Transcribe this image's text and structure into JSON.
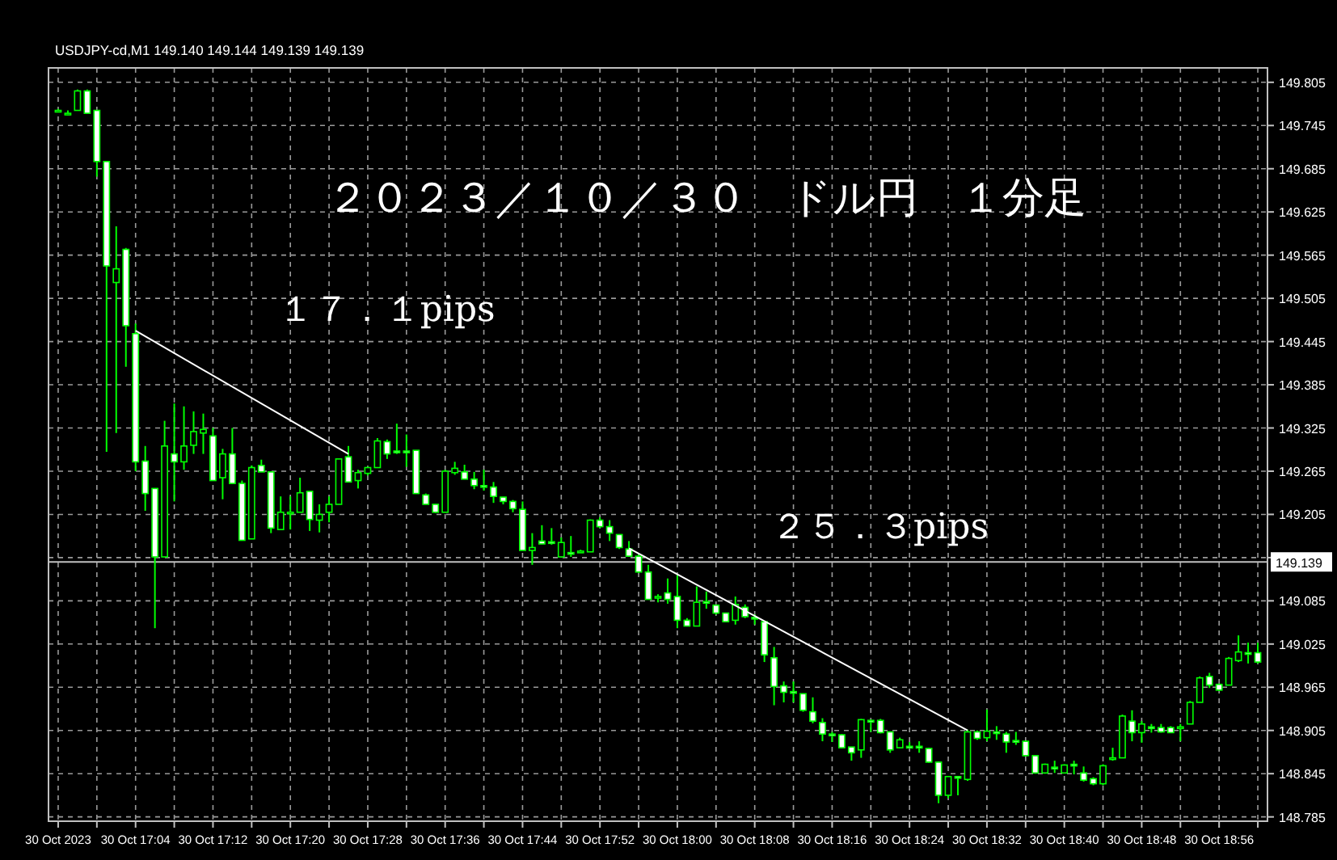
{
  "chart_data": {
    "type": "candlestick",
    "title": "２０２３／１０／３０　ドル円　１分足",
    "subtitle": "USDJPY-cd,M1  149.140 149.144 149.139 149.139",
    "x": [
      "2023-10-30T16:56",
      "2023-10-30T16:57",
      "2023-10-30T16:58",
      "2023-10-30T16:59",
      "2023-10-30T17:00",
      "2023-10-30T17:01",
      "2023-10-30T17:02",
      "2023-10-30T17:03",
      "2023-10-30T17:04",
      "2023-10-30T17:05",
      "2023-10-30T17:06",
      "2023-10-30T17:07",
      "2023-10-30T17:08",
      "2023-10-30T17:09",
      "2023-10-30T17:10",
      "2023-10-30T17:11",
      "2023-10-30T17:12",
      "2023-10-30T17:13",
      "2023-10-30T17:14",
      "2023-10-30T17:15",
      "2023-10-30T17:16",
      "2023-10-30T17:17",
      "2023-10-30T17:18",
      "2023-10-30T17:19",
      "2023-10-30T17:20",
      "2023-10-30T17:21",
      "2023-10-30T17:22",
      "2023-10-30T17:23",
      "2023-10-30T17:24",
      "2023-10-30T17:25",
      "2023-10-30T17:26",
      "2023-10-30T17:27",
      "2023-10-30T17:28",
      "2023-10-30T17:29",
      "2023-10-30T17:30",
      "2023-10-30T17:31",
      "2023-10-30T17:32",
      "2023-10-30T17:33",
      "2023-10-30T17:34",
      "2023-10-30T17:35",
      "2023-10-30T17:36",
      "2023-10-30T17:37",
      "2023-10-30T17:38",
      "2023-10-30T17:39",
      "2023-10-30T17:40",
      "2023-10-30T17:41",
      "2023-10-30T17:42",
      "2023-10-30T17:43",
      "2023-10-30T17:44",
      "2023-10-30T17:45",
      "2023-10-30T17:46",
      "2023-10-30T17:47",
      "2023-10-30T17:48",
      "2023-10-30T17:49",
      "2023-10-30T17:50",
      "2023-10-30T17:51",
      "2023-10-30T17:52",
      "2023-10-30T17:53",
      "2023-10-30T17:54",
      "2023-10-30T17:55",
      "2023-10-30T17:56",
      "2023-10-30T17:57",
      "2023-10-30T17:58",
      "2023-10-30T17:59",
      "2023-10-30T18:00",
      "2023-10-30T18:01",
      "2023-10-30T18:02",
      "2023-10-30T18:03",
      "2023-10-30T18:04",
      "2023-10-30T18:05",
      "2023-10-30T18:06",
      "2023-10-30T18:07",
      "2023-10-30T18:08",
      "2023-10-30T18:09",
      "2023-10-30T18:10",
      "2023-10-30T18:11",
      "2023-10-30T18:12",
      "2023-10-30T18:13",
      "2023-10-30T18:14",
      "2023-10-30T18:15",
      "2023-10-30T18:16",
      "2023-10-30T18:17",
      "2023-10-30T18:18",
      "2023-10-30T18:19",
      "2023-10-30T18:20",
      "2023-10-30T18:21",
      "2023-10-30T18:22",
      "2023-10-30T18:23",
      "2023-10-30T18:24",
      "2023-10-30T18:25",
      "2023-10-30T18:26",
      "2023-10-30T18:27",
      "2023-10-30T18:28",
      "2023-10-30T18:29",
      "2023-10-30T18:30",
      "2023-10-30T18:31",
      "2023-10-30T18:32",
      "2023-10-30T18:33",
      "2023-10-30T18:34",
      "2023-10-30T18:35",
      "2023-10-30T18:36",
      "2023-10-30T18:37",
      "2023-10-30T18:38",
      "2023-10-30T18:39",
      "2023-10-30T18:40",
      "2023-10-30T18:41",
      "2023-10-30T18:42",
      "2023-10-30T18:43",
      "2023-10-30T18:44",
      "2023-10-30T18:45",
      "2023-10-30T18:46",
      "2023-10-30T18:47",
      "2023-10-30T18:48",
      "2023-10-30T18:49",
      "2023-10-30T18:50",
      "2023-10-30T18:51",
      "2023-10-30T18:52",
      "2023-10-30T18:53",
      "2023-10-30T18:54",
      "2023-10-30T18:55",
      "2023-10-30T18:56",
      "2023-10-30T18:57",
      "2023-10-30T18:58",
      "2023-10-30T18:59",
      "2023-10-30T19:00"
    ],
    "ohlc": [
      [
        149.766,
        149.768,
        149.764,
        149.766
      ],
      [
        149.762,
        149.766,
        149.759,
        149.762
      ],
      [
        149.766,
        149.795,
        149.766,
        149.793
      ],
      [
        149.793,
        149.795,
        149.762,
        149.762
      ],
      [
        149.766,
        149.766,
        149.674,
        149.695
      ],
      [
        149.695,
        149.695,
        149.292,
        149.55
      ],
      [
        149.527,
        149.605,
        149.318,
        149.546
      ],
      [
        149.573,
        149.575,
        149.41,
        149.467
      ],
      [
        149.456,
        149.47,
        149.265,
        149.278
      ],
      [
        149.279,
        149.3,
        149.21,
        149.234
      ],
      [
        149.241,
        149.241,
        149.047,
        149.146
      ],
      [
        149.146,
        149.335,
        149.146,
        149.3
      ],
      [
        149.289,
        149.359,
        149.223,
        149.278
      ],
      [
        149.278,
        149.355,
        149.267,
        149.3
      ],
      [
        149.301,
        149.348,
        149.289,
        149.32
      ],
      [
        149.318,
        149.345,
        149.289,
        149.323
      ],
      [
        149.314,
        149.325,
        149.252,
        149.252
      ],
      [
        149.256,
        149.296,
        149.226,
        149.289
      ],
      [
        149.289,
        149.325,
        149.248,
        149.248
      ],
      [
        149.248,
        149.252,
        149.169,
        149.169
      ],
      [
        149.171,
        149.273,
        149.171,
        149.27
      ],
      [
        149.273,
        149.281,
        149.264,
        149.264
      ],
      [
        149.264,
        149.264,
        149.179,
        149.186
      ],
      [
        149.184,
        149.23,
        149.184,
        149.208
      ],
      [
        149.208,
        149.23,
        149.184,
        149.208
      ],
      [
        149.208,
        149.256,
        149.208,
        149.235
      ],
      [
        149.237,
        149.237,
        149.182,
        149.198
      ],
      [
        149.197,
        149.219,
        149.18,
        149.205
      ],
      [
        149.208,
        149.23,
        149.194,
        149.219
      ],
      [
        149.219,
        149.282,
        149.219,
        149.282
      ],
      [
        149.285,
        149.3,
        149.25,
        149.25
      ],
      [
        149.252,
        149.267,
        149.241,
        149.263
      ],
      [
        149.262,
        149.271,
        149.259,
        149.27
      ],
      [
        149.27,
        149.311,
        149.27,
        149.307
      ],
      [
        149.306,
        149.309,
        149.282,
        149.289
      ],
      [
        149.293,
        149.331,
        149.289,
        149.292
      ],
      [
        149.293,
        149.316,
        149.271,
        149.291
      ],
      [
        149.294,
        149.294,
        149.234,
        149.234
      ],
      [
        149.232,
        149.234,
        149.219,
        149.219
      ],
      [
        149.219,
        149.219,
        149.207,
        149.208
      ],
      [
        149.208,
        149.267,
        149.208,
        149.265
      ],
      [
        149.263,
        149.278,
        149.26,
        149.269
      ],
      [
        149.264,
        149.274,
        149.254,
        149.254
      ],
      [
        149.254,
        149.264,
        149.24,
        149.245
      ],
      [
        149.245,
        149.267,
        149.238,
        149.244
      ],
      [
        149.243,
        149.25,
        149.221,
        149.23
      ],
      [
        149.229,
        149.229,
        149.219,
        149.223
      ],
      [
        149.223,
        149.225,
        149.208,
        149.213
      ],
      [
        149.212,
        149.223,
        149.155,
        149.155
      ],
      [
        149.155,
        149.179,
        149.135,
        149.159
      ],
      [
        149.168,
        149.19,
        149.164,
        149.164
      ],
      [
        149.167,
        149.186,
        149.163,
        149.166
      ],
      [
        149.146,
        149.173,
        149.146,
        149.166
      ],
      [
        149.152,
        149.175,
        149.146,
        149.151
      ],
      [
        149.154,
        149.156,
        149.152,
        149.154
      ],
      [
        149.153,
        149.198,
        149.153,
        149.197
      ],
      [
        149.197,
        149.201,
        149.186,
        149.188
      ],
      [
        149.188,
        149.197,
        149.168,
        149.179
      ],
      [
        149.177,
        149.177,
        149.157,
        149.159
      ],
      [
        149.157,
        149.168,
        149.146,
        149.147
      ],
      [
        149.147,
        149.149,
        149.124,
        149.125
      ],
      [
        149.125,
        149.135,
        149.087,
        149.087
      ],
      [
        149.09,
        149.094,
        149.083,
        149.091
      ],
      [
        149.096,
        149.116,
        149.081,
        149.087
      ],
      [
        149.091,
        149.121,
        149.047,
        149.058
      ],
      [
        149.058,
        149.061,
        149.05,
        149.05
      ],
      [
        149.05,
        149.105,
        149.05,
        149.083
      ],
      [
        149.084,
        149.098,
        149.074,
        149.083
      ],
      [
        149.079,
        149.079,
        149.066,
        149.068
      ],
      [
        149.068,
        149.068,
        149.056,
        149.056
      ],
      [
        149.058,
        149.091,
        149.052,
        149.08
      ],
      [
        149.076,
        149.08,
        149.061,
        149.063
      ],
      [
        149.062,
        149.066,
        149.052,
        149.061
      ],
      [
        149.056,
        149.057,
        149.0,
        149.01
      ],
      [
        149.006,
        149.021,
        148.94,
        148.966
      ],
      [
        148.967,
        148.973,
        148.944,
        148.958
      ],
      [
        148.959,
        148.973,
        148.944,
        148.958
      ],
      [
        148.956,
        148.956,
        148.931,
        148.933
      ],
      [
        148.931,
        148.951,
        148.915,
        148.918
      ],
      [
        148.916,
        148.922,
        148.89,
        148.9
      ],
      [
        148.9,
        148.903,
        148.889,
        148.899
      ],
      [
        148.899,
        148.9,
        148.88,
        148.881
      ],
      [
        148.882,
        148.882,
        148.863,
        148.874
      ],
      [
        148.878,
        148.921,
        148.867,
        148.92
      ],
      [
        148.919,
        148.92,
        148.903,
        148.918
      ],
      [
        148.919,
        148.921,
        148.901,
        148.902
      ],
      [
        148.903,
        148.903,
        148.874,
        148.878
      ],
      [
        148.881,
        148.895,
        148.88,
        148.892
      ],
      [
        148.883,
        148.889,
        148.88,
        148.882
      ],
      [
        148.883,
        148.89,
        148.874,
        148.882
      ],
      [
        148.88,
        148.881,
        148.86,
        148.861
      ],
      [
        148.861,
        148.862,
        148.804,
        148.815
      ],
      [
        148.815,
        148.841,
        148.811,
        148.841
      ],
      [
        148.841,
        148.841,
        148.815,
        148.84
      ],
      [
        148.837,
        148.906,
        148.835,
        148.903
      ],
      [
        148.903,
        148.905,
        148.892,
        148.894
      ],
      [
        148.895,
        148.934,
        148.89,
        148.904
      ],
      [
        148.903,
        148.911,
        148.892,
        148.902
      ],
      [
        148.9,
        148.903,
        148.874,
        148.889
      ],
      [
        148.891,
        148.903,
        148.885,
        148.89
      ],
      [
        148.89,
        148.891,
        148.869,
        148.87
      ],
      [
        148.87,
        148.87,
        148.845,
        148.846
      ],
      [
        148.846,
        148.859,
        148.845,
        148.858
      ],
      [
        148.854,
        148.863,
        148.846,
        148.853
      ],
      [
        148.846,
        148.858,
        148.846,
        148.857
      ],
      [
        148.858,
        148.863,
        148.844,
        148.857
      ],
      [
        148.846,
        148.855,
        148.834,
        148.836
      ],
      [
        148.838,
        148.84,
        148.829,
        148.831
      ],
      [
        148.831,
        148.858,
        148.829,
        148.856
      ],
      [
        148.866,
        148.881,
        148.863,
        148.867
      ],
      [
        148.867,
        148.927,
        148.867,
        148.925
      ],
      [
        148.918,
        148.933,
        148.89,
        148.902
      ],
      [
        148.902,
        148.918,
        148.888,
        148.914
      ],
      [
        148.91,
        148.914,
        148.902,
        148.909
      ],
      [
        148.909,
        148.914,
        148.902,
        148.903
      ],
      [
        148.909,
        148.911,
        148.902,
        148.902
      ],
      [
        148.909,
        148.914,
        148.89,
        148.91
      ],
      [
        148.914,
        148.946,
        148.914,
        148.944
      ],
      [
        148.944,
        148.98,
        148.944,
        148.978
      ],
      [
        148.98,
        148.985,
        148.964,
        148.968
      ],
      [
        148.969,
        148.97,
        148.96,
        148.961
      ],
      [
        148.968,
        149.007,
        148.968,
        149.005
      ],
      [
        149.002,
        149.037,
        149.0,
        149.014
      ],
      [
        149.013,
        149.027,
        148.998,
        149.012
      ],
      [
        149.013,
        149.027,
        148.998,
        149.0
      ]
    ],
    "color": "#00ff00",
    "series": [
      {
        "type": "line",
        "color": "#ffffff",
        "x": [
          "2023-10-30T17:04",
          "2023-10-30T17:26"
        ],
        "values": [
          149.46,
          149.289
        ]
      },
      {
        "type": "line",
        "color": "#ffffff",
        "x": [
          "2023-10-30T17:55",
          "2023-10-30T18:30"
        ],
        "values": [
          149.158,
          148.905
        ]
      }
    ],
    "annotations": [
      "１７．１pips",
      "２５．３pips"
    ],
    "ref_lines": [
      {
        "axis": "y",
        "value": 149.139,
        "label": "149.139",
        "color": "#c0c0c0"
      }
    ],
    "xlim": [
      "2023-10-30T16:55",
      "2023-10-30T19:01"
    ],
    "xticks": [
      {
        "value": "2023-10-30T16:56",
        "label": "30 Oct 2023"
      },
      {
        "value": "2023-10-30T17:00",
        "label": null
      },
      {
        "value": "2023-10-30T17:04",
        "label": "30 Oct 17:04"
      },
      {
        "value": "2023-10-30T17:08",
        "label": null
      },
      {
        "value": "2023-10-30T17:12",
        "label": "30 Oct 17:12"
      },
      {
        "value": "2023-10-30T17:16",
        "label": null
      },
      {
        "value": "2023-10-30T17:20",
        "label": "30 Oct 17:20"
      },
      {
        "value": "2023-10-30T17:24",
        "label": null
      },
      {
        "value": "2023-10-30T17:28",
        "label": "30 Oct 17:28"
      },
      {
        "value": "2023-10-30T17:32",
        "label": null
      },
      {
        "value": "2023-10-30T17:36",
        "label": "30 Oct 17:36"
      },
      {
        "value": "2023-10-30T17:40",
        "label": null
      },
      {
        "value": "2023-10-30T17:44",
        "label": "30 Oct 17:44"
      },
      {
        "value": "2023-10-30T17:48",
        "label": null
      },
      {
        "value": "2023-10-30T17:52",
        "label": "30 Oct 17:52"
      },
      {
        "value": "2023-10-30T17:56",
        "label": null
      },
      {
        "value": "2023-10-30T18:00",
        "label": "30 Oct 18:00"
      },
      {
        "value": "2023-10-30T18:04",
        "label": null
      },
      {
        "value": "2023-10-30T18:08",
        "label": "30 Oct 18:08"
      },
      {
        "value": "2023-10-30T18:12",
        "label": null
      },
      {
        "value": "2023-10-30T18:16",
        "label": "30 Oct 18:16"
      },
      {
        "value": "2023-10-30T18:20",
        "label": null
      },
      {
        "value": "2023-10-30T18:24",
        "label": "30 Oct 18:24"
      },
      {
        "value": "2023-10-30T18:28",
        "label": null
      },
      {
        "value": "2023-10-30T18:32",
        "label": "30 Oct 18:32"
      },
      {
        "value": "2023-10-30T18:36",
        "label": null
      },
      {
        "value": "2023-10-30T18:40",
        "label": "30 Oct 18:40"
      },
      {
        "value": "2023-10-30T18:44",
        "label": null
      },
      {
        "value": "2023-10-30T18:48",
        "label": "30 Oct 18:48"
      },
      {
        "value": "2023-10-30T18:52",
        "label": null
      },
      {
        "value": "2023-10-30T18:56",
        "label": "30 Oct 18:56"
      },
      {
        "value": "2023-10-30T19:00",
        "label": null
      }
    ],
    "ylim": [
      148.779,
      149.825
    ],
    "yticks": [
      149.805,
      149.745,
      149.685,
      149.625,
      149.565,
      149.505,
      149.445,
      149.385,
      149.325,
      149.265,
      149.205,
      {
        "value": 149.145,
        "label": null
      },
      149.085,
      149.025,
      148.965,
      148.905,
      148.845,
      148.785
    ],
    "grid": true
  }
}
